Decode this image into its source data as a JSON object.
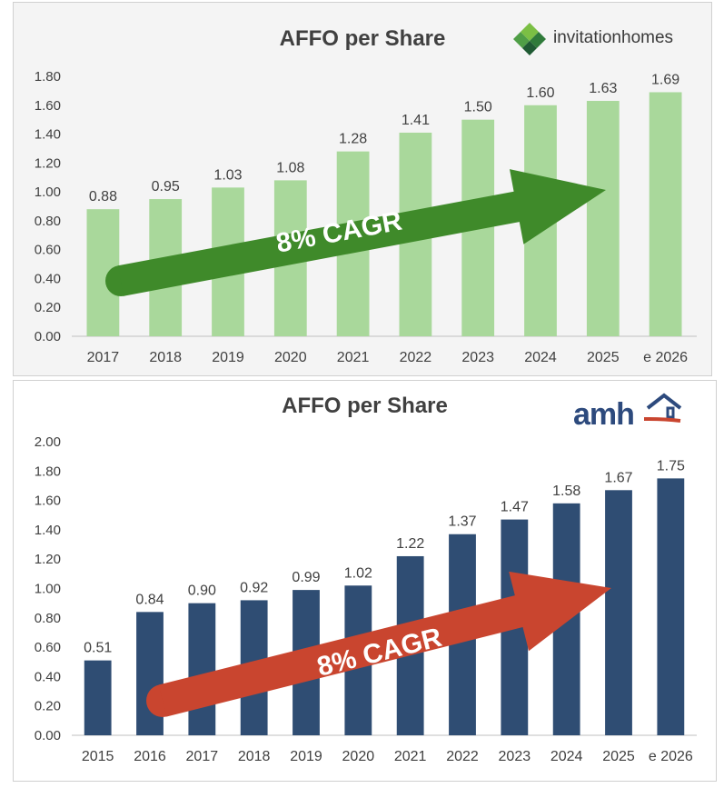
{
  "chart_data": [
    {
      "type": "bar",
      "title": "AFFO per Share",
      "company": "invitation homes",
      "logo_text": [
        "invitation",
        "homes"
      ],
      "categories": [
        "2017",
        "2018",
        "2019",
        "2020",
        "2021",
        "2022",
        "2023",
        "2024",
        "2025",
        "e 2026"
      ],
      "values": [
        0.88,
        0.95,
        1.03,
        1.08,
        1.28,
        1.41,
        1.5,
        1.6,
        1.63,
        1.69
      ],
      "value_labels": [
        "0.88",
        "0.95",
        "1.03",
        "1.08",
        "1.28",
        "1.41",
        "1.50",
        "1.60",
        "1.63",
        "1.69"
      ],
      "ylim": [
        0,
        1.8
      ],
      "yticks": [
        "0.00",
        "0.20",
        "0.40",
        "0.60",
        "0.80",
        "1.00",
        "1.20",
        "1.40",
        "1.60",
        "1.80"
      ],
      "bar_color": "#a9d89b",
      "arrow_color": "#3f8a2a",
      "annotation": "8% CAGR"
    },
    {
      "type": "bar",
      "title": "AFFO per Share",
      "company": "amh",
      "logo_text": "amh",
      "categories": [
        "2015",
        "2016",
        "2017",
        "2018",
        "2019",
        "2020",
        "2021",
        "2022",
        "2023",
        "2024",
        "2025",
        "e 2026"
      ],
      "values": [
        0.51,
        0.84,
        0.9,
        0.92,
        0.99,
        1.02,
        1.22,
        1.37,
        1.47,
        1.58,
        1.67,
        1.75
      ],
      "value_labels": [
        "0.51",
        "0.84",
        "0.90",
        "0.92",
        "0.99",
        "1.02",
        "1.22",
        "1.37",
        "1.47",
        "1.58",
        "1.67",
        "1.75"
      ],
      "ylim": [
        0,
        2.0
      ],
      "yticks": [
        "0.00",
        "0.20",
        "0.40",
        "0.60",
        "0.80",
        "1.00",
        "1.20",
        "1.40",
        "1.60",
        "1.80",
        "2.00"
      ],
      "bar_color": "#2f4d73",
      "arrow_color": "#c9452f",
      "annotation": "8% CAGR"
    }
  ]
}
